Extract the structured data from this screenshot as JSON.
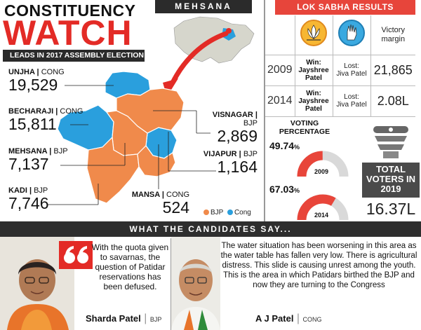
{
  "header": {
    "title_top": "CONSTITUENCY",
    "title_main": "WATCH",
    "subtitle_bar": "LEADS IN 2017 ASSEMBLY ELECTION",
    "region_tab": "MEHSANA"
  },
  "constituencies": [
    {
      "name": "UNJHA",
      "party": "CONG",
      "lead": "19,529"
    },
    {
      "name": "BECHARAJI",
      "party": "CONG",
      "lead": "15,811"
    },
    {
      "name": "MEHSANA",
      "party": "BJP",
      "lead": "7,137"
    },
    {
      "name": "KADI",
      "party": "BJP",
      "lead": "7,746"
    },
    {
      "name": "VISNAGAR",
      "party": "BJP",
      "lead": "2,869"
    },
    {
      "name": "VIJAPUR",
      "party": "BJP",
      "lead": "1,164"
    },
    {
      "name": "MANSA",
      "party": "CONG",
      "lead": "524"
    }
  ],
  "legend": {
    "bjp": "BJP",
    "cong": "Cong"
  },
  "colors": {
    "bjp": "#f08a4b",
    "cong": "#2a9fdd",
    "accent": "#e32b26",
    "map_gray": "#d6d6cc"
  },
  "lok_sabha": {
    "title": "LOK SABHA RESULTS",
    "margin_header": "Victory margin",
    "rows": [
      {
        "year": "2009",
        "win_label": "Win:",
        "winner": "Jayshree Patel",
        "lost_label": "Lost:",
        "loser": "Jiva Patel",
        "margin": "21,865"
      },
      {
        "year": "2014",
        "win_label": "Win:",
        "winner": "Jayshree Patel",
        "lost_label": "Lost:",
        "loser": "Jiva Patel",
        "margin": "2.08L"
      }
    ]
  },
  "voting": {
    "title": "VOTING PERCENTAGE",
    "rings": [
      {
        "year": "2009",
        "pct_main": "49.74",
        "pct_sign": "%",
        "value": 49.74
      },
      {
        "year": "2014",
        "pct_main": "67.03",
        "pct_sign": "%",
        "value": 67.03
      }
    ],
    "total_label": "TOTAL VOTERS IN 2019",
    "total_value": "16.37L"
  },
  "candidates": {
    "bar_title": "WHAT THE CANDIDATES SAY...",
    "left": {
      "quote": "With the quota given to savarnas, the question of Patidar reservations has been defused.",
      "name": "Sharda Patel",
      "party": "BJP"
    },
    "right": {
      "quote": "The water situation has been worsening in this area as the water table has fallen very low. There is agricultural distress. This slide is causing unrest among the youth. This is the area in which Patidars birthed the BJP and now they are turning to the Congress",
      "name": "A J Patel",
      "party": "CONG"
    }
  }
}
